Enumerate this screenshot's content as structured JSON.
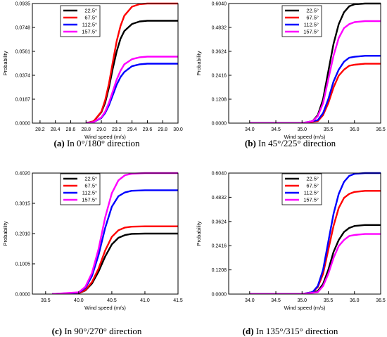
{
  "chart_data": [
    {
      "type": "line",
      "caption_letter": "(a)",
      "caption_text": " In 0°/180° direction",
      "xlabel": "Wind speed (m/s)",
      "ylabel": "Probability",
      "xlim": [
        28.1,
        30.0
      ],
      "ylim": [
        0,
        0.0935
      ],
      "xticks": [
        "28.2",
        "28.4",
        "28.6",
        "28.8",
        "29.0",
        "29.2",
        "29.4",
        "29.6",
        "29.8",
        "30.0"
      ],
      "yticks": [
        "0.0000",
        "0.0187",
        "0.0374",
        "0.0561",
        "0.0748",
        "0.0935"
      ],
      "legend_position": "top-left",
      "series": [
        {
          "name": "22.5°",
          "color": "#000000",
          "x": [
            28.8,
            28.9,
            29.0,
            29.05,
            29.1,
            29.15,
            29.2,
            29.25,
            29.3,
            29.4,
            29.5,
            29.6,
            29.8,
            30.0
          ],
          "y": [
            0.0,
            0.0015,
            0.0085,
            0.016,
            0.028,
            0.043,
            0.056,
            0.066,
            0.072,
            0.0775,
            0.0795,
            0.08,
            0.08,
            0.08
          ]
        },
        {
          "name": "67.5°",
          "color": "#ff0000",
          "x": [
            28.8,
            28.9,
            29.0,
            29.05,
            29.1,
            29.15,
            29.2,
            29.25,
            29.3,
            29.4,
            29.5,
            29.6,
            29.8,
            30.0
          ],
          "y": [
            0.0,
            0.0015,
            0.009,
            0.018,
            0.031,
            0.048,
            0.064,
            0.076,
            0.084,
            0.091,
            0.093,
            0.0935,
            0.0935,
            0.0935
          ]
        },
        {
          "name": "112.5°",
          "color": "#0000ff",
          "x": [
            28.8,
            28.9,
            29.0,
            29.05,
            29.1,
            29.15,
            29.2,
            29.25,
            29.3,
            29.4,
            29.5,
            29.6,
            29.8,
            30.0
          ],
          "y": [
            0.0,
            0.0008,
            0.004,
            0.008,
            0.014,
            0.022,
            0.03,
            0.036,
            0.04,
            0.0445,
            0.046,
            0.0465,
            0.0465,
            0.0465
          ]
        },
        {
          "name": "157.5°",
          "color": "#ff00ff",
          "x": [
            28.8,
            28.9,
            29.0,
            29.05,
            29.1,
            29.15,
            29.2,
            29.25,
            29.3,
            29.4,
            29.5,
            29.6,
            29.8,
            30.0
          ],
          "y": [
            0.0,
            0.0009,
            0.0045,
            0.009,
            0.016,
            0.025,
            0.034,
            0.041,
            0.046,
            0.05,
            0.0515,
            0.052,
            0.052,
            0.052
          ]
        }
      ]
    },
    {
      "type": "line",
      "caption_letter": "(b)",
      "caption_text": " In 45°/225° direction",
      "xlabel": "Wind speed (m/s)",
      "ylabel": "Probability",
      "xlim": [
        33.6,
        36.5
      ],
      "ylim": [
        0,
        0.604
      ],
      "xticks": [
        "34.0",
        "34.5",
        "35.0",
        "35.5",
        "36.0",
        "36.5"
      ],
      "yticks": [
        "0.0000",
        "0.1208",
        "0.2416",
        "0.3624",
        "0.4832",
        "0.6040"
      ],
      "legend_position": "top-right",
      "series": [
        {
          "name": "22.5°",
          "color": "#000000",
          "x": [
            34.0,
            35.0,
            35.2,
            35.3,
            35.4,
            35.5,
            35.6,
            35.7,
            35.8,
            35.9,
            36.0,
            36.2,
            36.5
          ],
          "y": [
            0.0,
            0.0,
            0.01,
            0.04,
            0.12,
            0.26,
            0.4,
            0.5,
            0.56,
            0.59,
            0.6,
            0.604,
            0.604
          ]
        },
        {
          "name": "67.5°",
          "color": "#ff0000",
          "x": [
            34.0,
            35.0,
            35.3,
            35.4,
            35.5,
            35.6,
            35.7,
            35.8,
            35.9,
            36.0,
            36.2,
            36.5
          ],
          "y": [
            0.0,
            0.0,
            0.01,
            0.04,
            0.1,
            0.18,
            0.24,
            0.27,
            0.29,
            0.295,
            0.3,
            0.3
          ]
        },
        {
          "name": "112.5°",
          "color": "#0000ff",
          "x": [
            34.0,
            35.0,
            35.3,
            35.4,
            35.5,
            35.6,
            35.7,
            35.8,
            35.9,
            36.0,
            36.2,
            36.5
          ],
          "y": [
            0.0,
            0.0,
            0.015,
            0.05,
            0.12,
            0.21,
            0.27,
            0.31,
            0.33,
            0.335,
            0.34,
            0.34
          ]
        },
        {
          "name": "157.5°",
          "color": "#ff00ff",
          "x": [
            34.0,
            35.0,
            35.2,
            35.3,
            35.4,
            35.5,
            35.6,
            35.7,
            35.8,
            35.9,
            36.0,
            36.2,
            36.5
          ],
          "y": [
            0.0,
            0.0,
            0.01,
            0.035,
            0.1,
            0.22,
            0.34,
            0.43,
            0.48,
            0.5,
            0.51,
            0.515,
            0.515
          ]
        }
      ]
    },
    {
      "type": "line",
      "caption_letter": "(c)",
      "caption_text": " In 90°/270° direction",
      "xlabel": "Wind speed (m/s)",
      "ylabel": "Probability",
      "xlim": [
        39.3,
        41.5
      ],
      "ylim": [
        0,
        0.402
      ],
      "xticks": [
        "39.5",
        "40.0",
        "40.5",
        "41.0",
        "41.5"
      ],
      "yticks": [
        "0.0000",
        "0.1005",
        "0.2010",
        "0.3015",
        "0.4020"
      ],
      "legend_position": "top-left",
      "series": [
        {
          "name": "22.5°",
          "color": "#000000",
          "x": [
            39.6,
            40.0,
            40.1,
            40.2,
            40.3,
            40.4,
            40.5,
            40.6,
            40.7,
            40.8,
            41.0,
            41.5
          ],
          "y": [
            0.0,
            0.003,
            0.012,
            0.035,
            0.075,
            0.125,
            0.165,
            0.187,
            0.196,
            0.2,
            0.201,
            0.201
          ]
        },
        {
          "name": "67.5°",
          "color": "#ff0000",
          "x": [
            39.6,
            40.0,
            40.1,
            40.2,
            40.3,
            40.4,
            40.5,
            40.6,
            40.7,
            40.8,
            41.0,
            41.5
          ],
          "y": [
            0.0,
            0.003,
            0.013,
            0.04,
            0.085,
            0.145,
            0.19,
            0.212,
            0.221,
            0.224,
            0.225,
            0.225
          ]
        },
        {
          "name": "112.5°",
          "color": "#0000ff",
          "x": [
            39.6,
            40.0,
            40.1,
            40.2,
            40.3,
            40.4,
            40.5,
            40.6,
            40.7,
            40.8,
            41.0,
            41.5
          ],
          "y": [
            0.0,
            0.005,
            0.02,
            0.06,
            0.13,
            0.22,
            0.29,
            0.325,
            0.338,
            0.343,
            0.345,
            0.345
          ]
        },
        {
          "name": "157.5°",
          "color": "#ff00ff",
          "x": [
            39.6,
            40.0,
            40.1,
            40.2,
            40.3,
            40.4,
            40.5,
            40.6,
            40.7,
            40.8,
            41.0,
            41.5
          ],
          "y": [
            0.0,
            0.006,
            0.024,
            0.07,
            0.15,
            0.255,
            0.335,
            0.378,
            0.395,
            0.4,
            0.402,
            0.402
          ]
        }
      ]
    },
    {
      "type": "line",
      "caption_letter": "(d)",
      "caption_text": " In 135°/315° direction",
      "xlabel": "Wind speed (m/s)",
      "ylabel": "Probability",
      "xlim": [
        33.6,
        36.5
      ],
      "ylim": [
        0,
        0.604
      ],
      "xticks": [
        "34.0",
        "34.5",
        "35.0",
        "35.5",
        "36.0",
        "36.5"
      ],
      "yticks": [
        "0.0000",
        "0.1208",
        "0.2416",
        "0.3624",
        "0.4832",
        "0.6040"
      ],
      "legend_position": "top-right",
      "series": [
        {
          "name": "22.5°",
          "color": "#000000",
          "x": [
            34.0,
            35.0,
            35.3,
            35.4,
            35.5,
            35.6,
            35.7,
            35.8,
            35.9,
            36.0,
            36.2,
            36.5
          ],
          "y": [
            0.0,
            0.0,
            0.015,
            0.05,
            0.12,
            0.21,
            0.27,
            0.31,
            0.33,
            0.34,
            0.345,
            0.345
          ]
        },
        {
          "name": "67.5°",
          "color": "#ff0000",
          "x": [
            34.0,
            35.0,
            35.2,
            35.3,
            35.4,
            35.5,
            35.6,
            35.7,
            35.8,
            35.9,
            36.0,
            36.2,
            36.5
          ],
          "y": [
            0.0,
            0.0,
            0.01,
            0.035,
            0.1,
            0.22,
            0.34,
            0.43,
            0.48,
            0.5,
            0.51,
            0.515,
            0.515
          ]
        },
        {
          "name": "112.5°",
          "color": "#0000ff",
          "x": [
            34.0,
            35.0,
            35.2,
            35.3,
            35.4,
            35.5,
            35.6,
            35.7,
            35.8,
            35.9,
            36.0,
            36.2,
            36.5
          ],
          "y": [
            0.0,
            0.0,
            0.01,
            0.04,
            0.12,
            0.26,
            0.4,
            0.5,
            0.56,
            0.59,
            0.6,
            0.604,
            0.604
          ]
        },
        {
          "name": "157.5°",
          "color": "#ff00ff",
          "x": [
            34.0,
            35.0,
            35.3,
            35.4,
            35.5,
            35.6,
            35.7,
            35.8,
            35.9,
            36.0,
            36.2,
            36.5
          ],
          "y": [
            0.0,
            0.0,
            0.01,
            0.04,
            0.1,
            0.18,
            0.24,
            0.27,
            0.29,
            0.295,
            0.3,
            0.3
          ]
        }
      ]
    }
  ]
}
